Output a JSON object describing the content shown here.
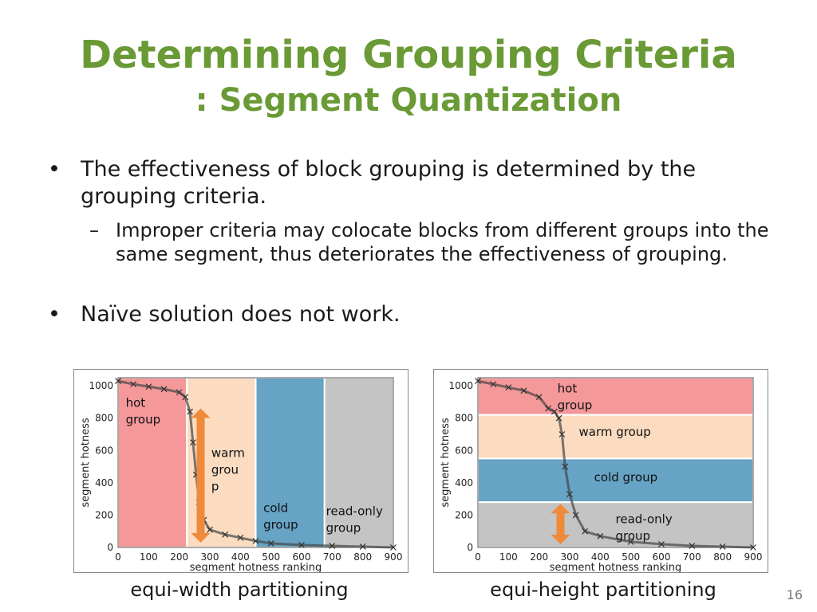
{
  "slide": {
    "title_line1": "Determining Grouping Criteria",
    "title_line2": ": Segment Quantization",
    "bullet1": "The effectiveness of block grouping is determined by the grouping criteria.",
    "sub_bullet1": "Improper criteria may colocate blocks from different groups into the same segment, thus deteriorates the effectiveness of grouping.",
    "bullet2": "Naïve solution does not work.",
    "page_number": "16",
    "bullet_glyph": "•",
    "dash_glyph": "–"
  },
  "colors": {
    "title": "#6a9a35",
    "hot": "#f4989a",
    "warm": "#fbdcc1",
    "cold": "#66a3c4",
    "readonly": "#c4c4c4",
    "arrow": "#ee8a3a"
  },
  "chart_data": [
    {
      "type": "scatter",
      "caption": "equi-width partitioning",
      "xlabel": "segment hotness ranking",
      "ylabel": "segment hotness",
      "xlim": [
        0,
        900
      ],
      "ylim": [
        0,
        1050
      ],
      "xticks": [
        "0",
        "100",
        "200",
        "300",
        "400",
        "500",
        "600",
        "700",
        "800",
        "900"
      ],
      "yticks": [
        "0",
        "200",
        "400",
        "600",
        "800",
        "1000"
      ],
      "regions": [
        {
          "label": "hot group",
          "x0": 0,
          "x1": 225,
          "y0": 0,
          "y1": 1050,
          "color": "hot"
        },
        {
          "label": "warm group",
          "x0": 225,
          "x1": 450,
          "y0": 0,
          "y1": 1050,
          "color": "warm"
        },
        {
          "label": "cold group",
          "x0": 450,
          "x1": 675,
          "y0": 0,
          "y1": 1050,
          "color": "cold"
        },
        {
          "label": "read-only group",
          "x0": 675,
          "x1": 900,
          "y0": 0,
          "y1": 1050,
          "color": "readonly"
        }
      ],
      "region_labels": [
        {
          "lines": [
            "hot",
            "group"
          ],
          "x": 25,
          "y": 870
        },
        {
          "lines": [
            "warm",
            "grou",
            "p"
          ],
          "x": 305,
          "y": 560
        },
        {
          "lines": [
            "cold",
            "group"
          ],
          "x": 475,
          "y": 220
        },
        {
          "lines": [
            "read-only",
            "group"
          ],
          "x": 680,
          "y": 200
        }
      ],
      "arrow": {
        "x": 270,
        "y0": 30,
        "y1": 860
      },
      "series": [
        {
          "values": [
            [
              0,
              1030
            ],
            [
              50,
              1010
            ],
            [
              100,
              995
            ],
            [
              150,
              980
            ],
            [
              200,
              960
            ],
            [
              220,
              930
            ],
            [
              235,
              840
            ],
            [
              245,
              650
            ],
            [
              255,
              450
            ],
            [
              265,
              280
            ],
            [
              280,
              170
            ],
            [
              300,
              110
            ],
            [
              350,
              80
            ],
            [
              400,
              60
            ],
            [
              450,
              40
            ],
            [
              500,
              25
            ],
            [
              600,
              15
            ],
            [
              700,
              10
            ],
            [
              800,
              5
            ],
            [
              900,
              0
            ]
          ]
        }
      ]
    },
    {
      "type": "scatter",
      "caption": "equi-height partitioning",
      "xlabel": "segment hotness ranking",
      "ylabel": "segment hotness",
      "xlim": [
        0,
        900
      ],
      "ylim": [
        0,
        1050
      ],
      "xticks": [
        "0",
        "100",
        "200",
        "300",
        "400",
        "500",
        "600",
        "700",
        "800",
        "900"
      ],
      "yticks": [
        "0",
        "200",
        "400",
        "600",
        "800",
        "1000"
      ],
      "regions": [
        {
          "label": "hot group",
          "x0": 0,
          "x1": 900,
          "y0": 820,
          "y1": 1050,
          "color": "hot"
        },
        {
          "label": "warm group",
          "x0": 0,
          "x1": 900,
          "y0": 550,
          "y1": 820,
          "color": "warm"
        },
        {
          "label": "cold group",
          "x0": 0,
          "x1": 900,
          "y0": 280,
          "y1": 550,
          "color": "cold"
        },
        {
          "label": "read-only group",
          "x0": 0,
          "x1": 900,
          "y0": 0,
          "y1": 280,
          "color": "readonly"
        }
      ],
      "region_labels": [
        {
          "lines": [
            "hot",
            "group"
          ],
          "x": 260,
          "y": 960
        },
        {
          "lines": [
            "warm group"
          ],
          "x": 330,
          "y": 690
        },
        {
          "lines": [
            "cold group"
          ],
          "x": 380,
          "y": 410
        },
        {
          "lines": [
            "read-only",
            "group"
          ],
          "x": 450,
          "y": 150
        }
      ],
      "arrow": {
        "x": 270,
        "y0": 20,
        "y1": 270
      },
      "series": [
        {
          "values": [
            [
              0,
              1030
            ],
            [
              50,
              1010
            ],
            [
              100,
              990
            ],
            [
              150,
              970
            ],
            [
              200,
              930
            ],
            [
              230,
              860
            ],
            [
              250,
              840
            ],
            [
              265,
              800
            ],
            [
              275,
              700
            ],
            [
              285,
              500
            ],
            [
              300,
              330
            ],
            [
              320,
              200
            ],
            [
              350,
              100
            ],
            [
              400,
              70
            ],
            [
              500,
              35
            ],
            [
              600,
              20
            ],
            [
              700,
              10
            ],
            [
              800,
              5
            ],
            [
              900,
              0
            ]
          ]
        }
      ]
    }
  ]
}
